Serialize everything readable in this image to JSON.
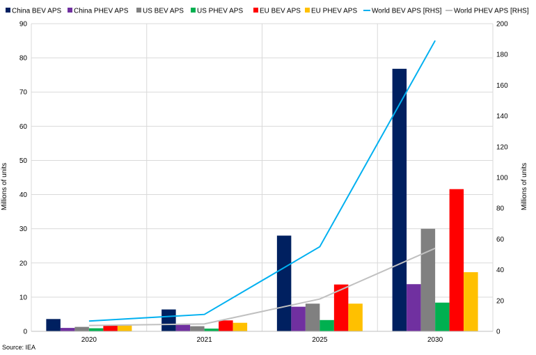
{
  "chart_data": {
    "type": "bar",
    "categories": [
      "2020",
      "2021",
      "2025",
      "2030"
    ],
    "series": [
      {
        "name": "China BEV APS",
        "type": "bar",
        "color": "#002060",
        "values": [
          3.6,
          6.4,
          28.0,
          76.8
        ]
      },
      {
        "name": "China PHEV APS",
        "type": "bar",
        "color": "#7030A0",
        "values": [
          1.0,
          1.9,
          7.2,
          13.8
        ]
      },
      {
        "name": "US BEV APS",
        "type": "bar",
        "color": "#808080",
        "values": [
          1.3,
          1.5,
          8.1,
          30.0
        ]
      },
      {
        "name": "US PHEV APS",
        "type": "bar",
        "color": "#00B050",
        "values": [
          0.9,
          0.8,
          3.3,
          8.4
        ]
      },
      {
        "name": "EU BEV APS",
        "type": "bar",
        "color": "#FF0000",
        "values": [
          1.7,
          3.2,
          13.7,
          41.6
        ]
      },
      {
        "name": "EU PHEV APS",
        "type": "bar",
        "color": "#FFC000",
        "values": [
          1.7,
          2.5,
          8.1,
          17.3
        ]
      },
      {
        "name": "World BEV APS [RHS]",
        "type": "line",
        "axis": "right",
        "color": "#00B0F0",
        "values": [
          6.7,
          11.0,
          55.0,
          189.0
        ]
      },
      {
        "name": "World PHEV APS [RHS]",
        "type": "line",
        "axis": "right",
        "color": "#C0C0C0",
        "values": [
          3.8,
          4.8,
          21.0,
          54.0
        ]
      }
    ],
    "ylabel": "Millions of units",
    "ylabel_right": "Millions of units",
    "ylim": [
      0,
      90
    ],
    "yticks": [
      0,
      10,
      20,
      30,
      40,
      50,
      60,
      70,
      80,
      90
    ],
    "ylim_right": [
      0,
      200
    ],
    "yticks_right": [
      0,
      20,
      40,
      60,
      80,
      100,
      120,
      140,
      160,
      180,
      200
    ],
    "grid": "vertical",
    "legend_position": "top",
    "source": "Source: IEA"
  }
}
